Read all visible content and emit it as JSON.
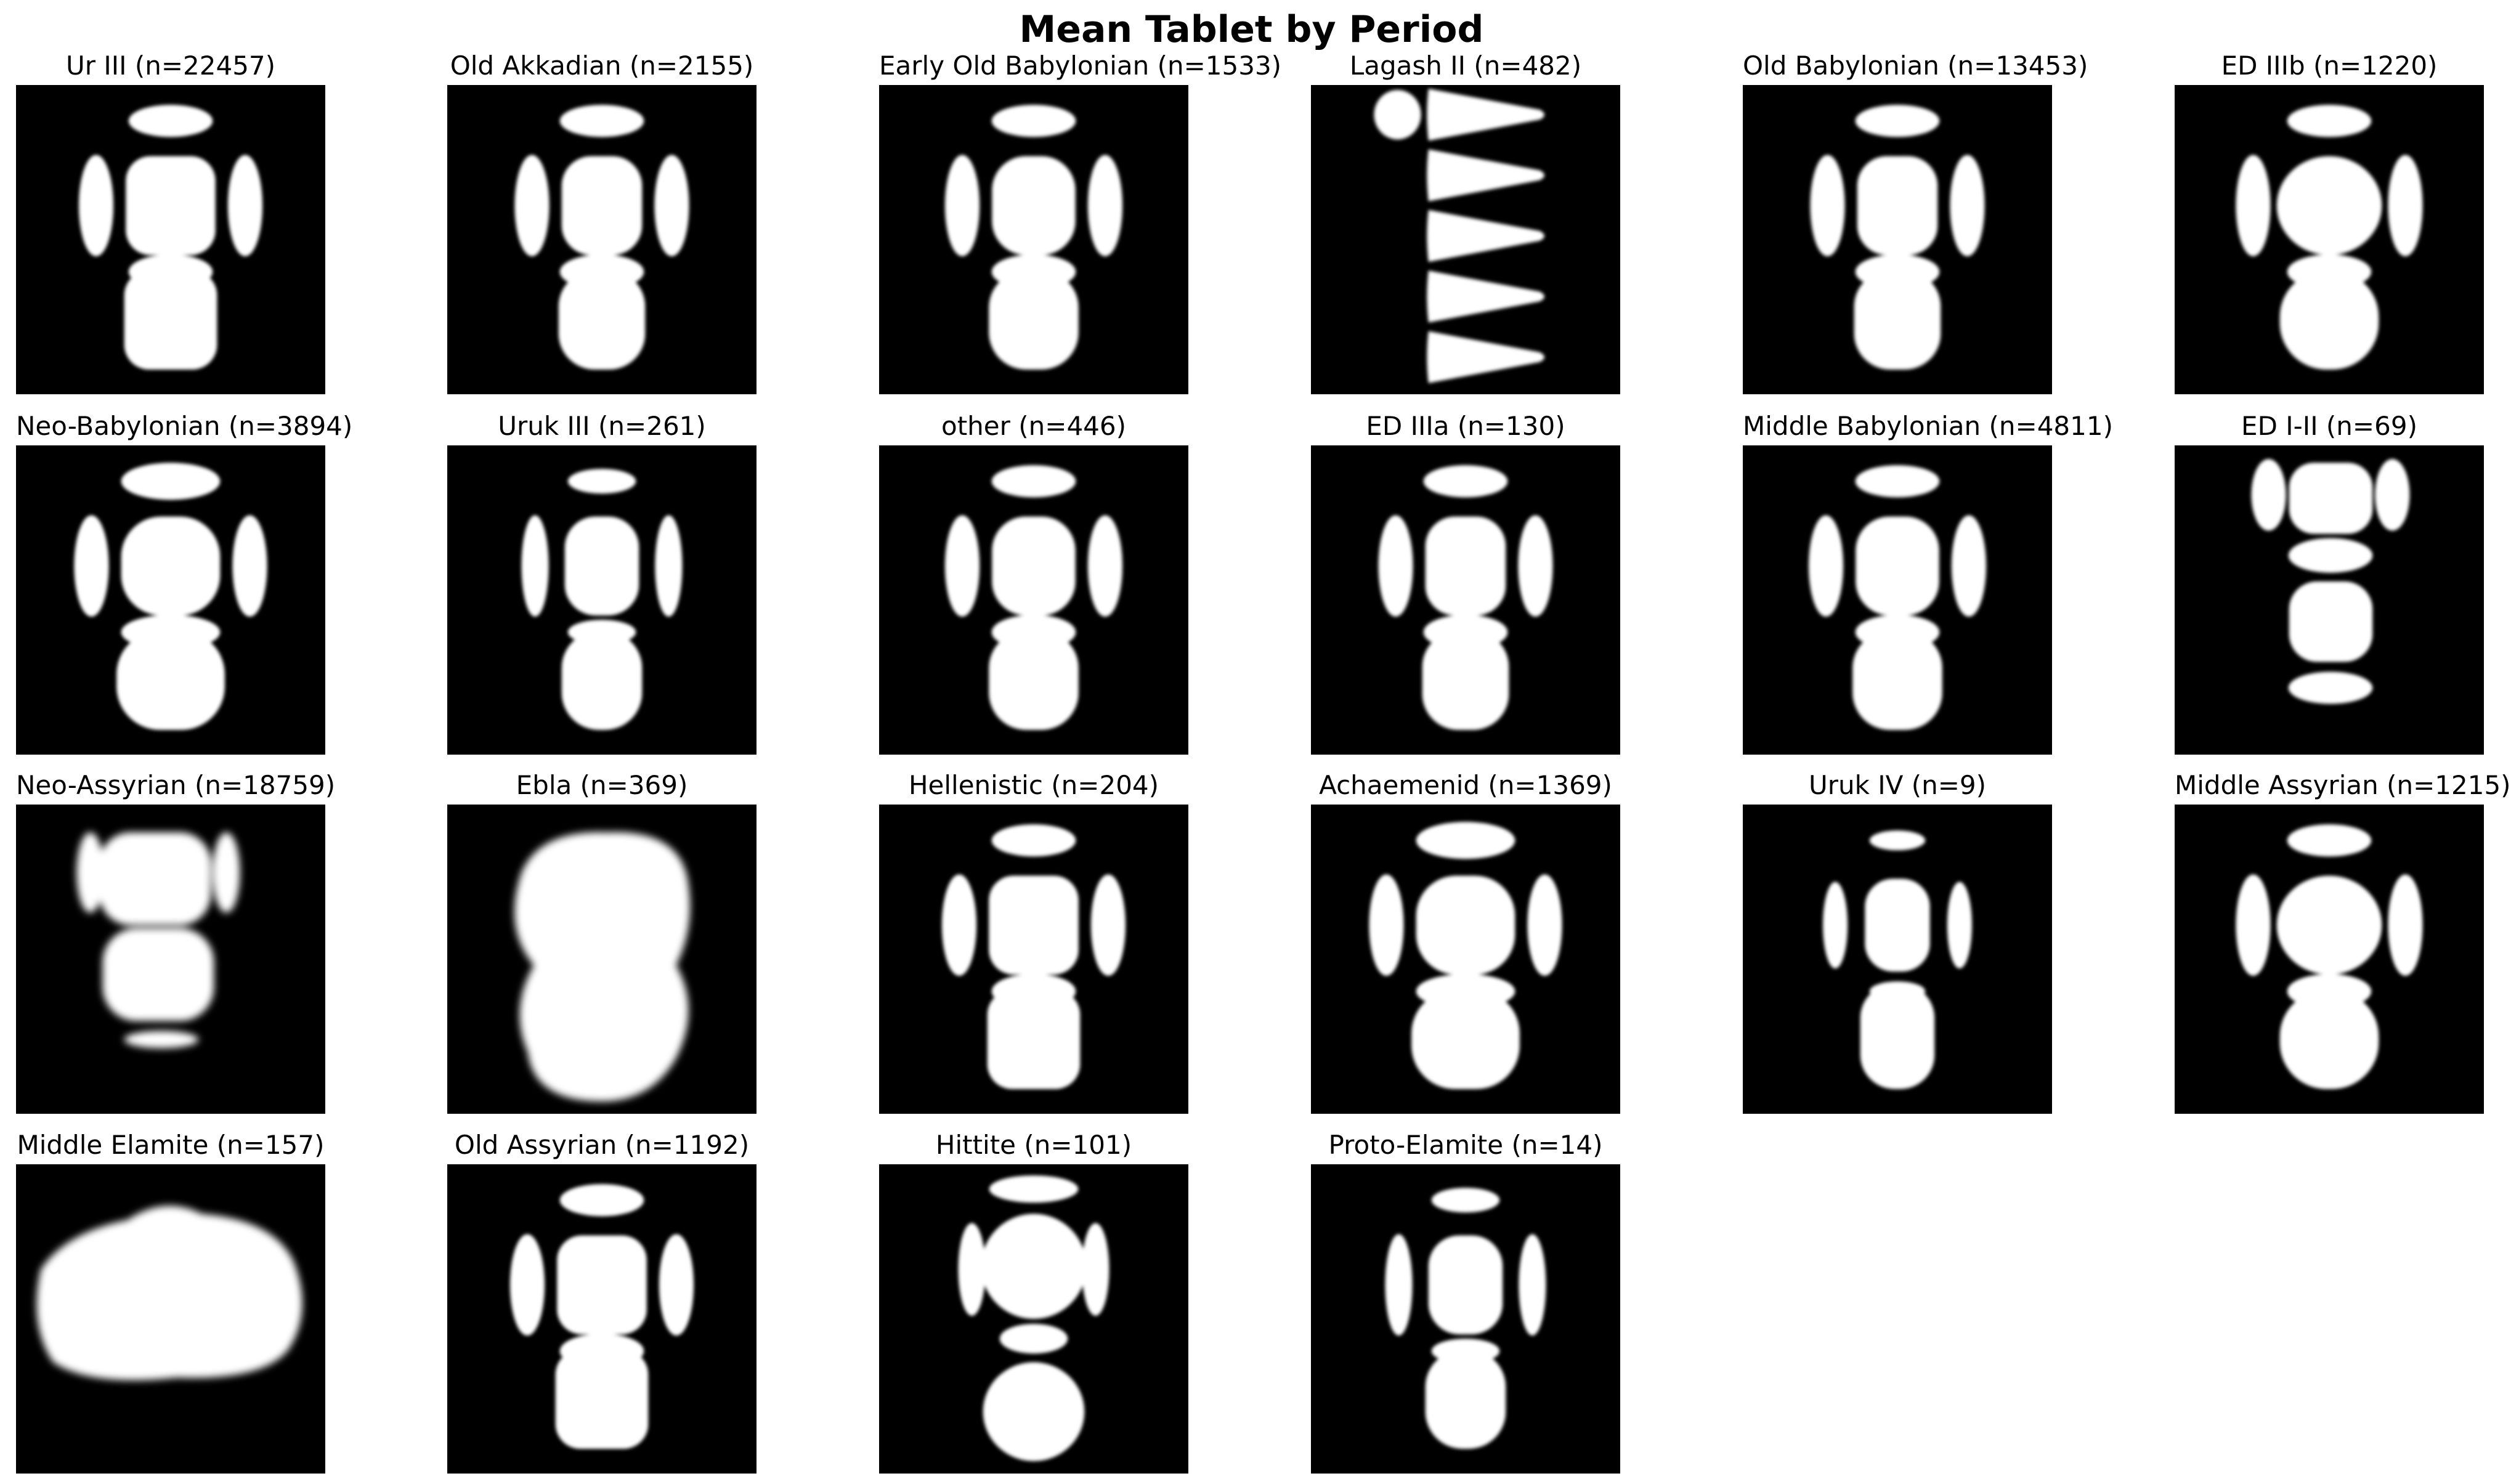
{
  "title": "Mean Tablet by Period",
  "panels": [
    {
      "label": "Ur III (n=22457)",
      "shape": "standard-wide"
    },
    {
      "label": "Old Akkadian (n=2155)",
      "shape": "standard"
    },
    {
      "label": "Early Old Babylonian (n=1533)",
      "shape": "standard-soft"
    },
    {
      "label": "Lagash II (n=482)",
      "shape": "triangles"
    },
    {
      "label": "Old Babylonian (n=13453)",
      "shape": "standard"
    },
    {
      "label": "ED IIIb (n=1220)",
      "shape": "standard-round"
    },
    {
      "label": "Neo-Babylonian (n=3894)",
      "shape": "standard-large"
    },
    {
      "label": "Uruk III (n=261)",
      "shape": "standard-narrow"
    },
    {
      "label": "other (n=446)",
      "shape": "standard-soft"
    },
    {
      "label": "ED IIIa (n=130)",
      "shape": "standard"
    },
    {
      "label": "Middle Babylonian (n=4811)",
      "shape": "standard-soft"
    },
    {
      "label": "ED I-II (n=69)",
      "shape": "ed-one-two"
    },
    {
      "label": "Neo-Assyrian (n=18759)",
      "shape": "noisy"
    },
    {
      "label": "Ebla (n=369)",
      "shape": "blob-tall"
    },
    {
      "label": "Hellenistic (n=204)",
      "shape": "standard-wide"
    },
    {
      "label": "Achaemenid (n=1369)",
      "shape": "standard-large"
    },
    {
      "label": "Uruk IV (n=9)",
      "shape": "standard-small"
    },
    {
      "label": "Middle Assyrian (n=1215)",
      "shape": "standard-round"
    },
    {
      "label": "Middle Elamite (n=157)",
      "shape": "blob-wide"
    },
    {
      "label": "Old Assyrian (n=1192)",
      "shape": "standard-wide"
    },
    {
      "label": "Hittite (n=101)",
      "shape": "hittite"
    },
    {
      "label": "Proto-Elamite (n=14)",
      "shape": "standard-narrow"
    }
  ]
}
